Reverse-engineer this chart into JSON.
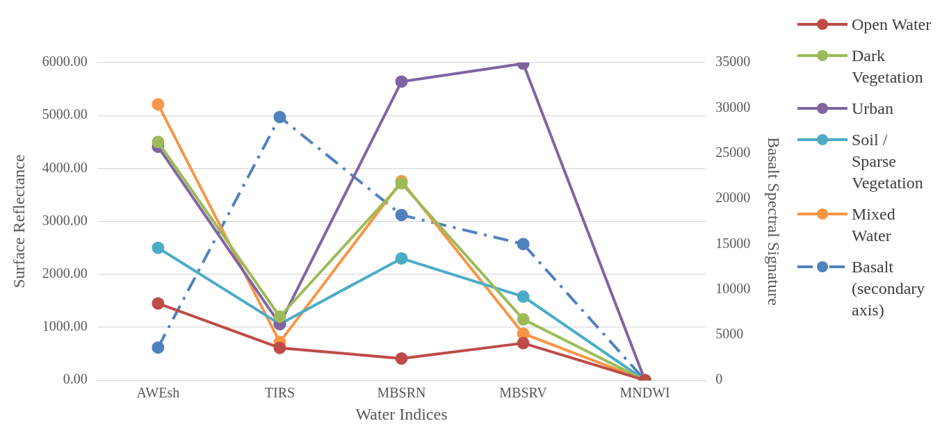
{
  "chart_data": {
    "type": "line",
    "xlabel": "Water Indices",
    "ylabel": "Surface Reflectance",
    "y2label": "Basalt Spectral Signature",
    "categories": [
      "AWEsh",
      "TIRS",
      "MBSRN",
      "MBSRV",
      "MNDWI"
    ],
    "series": [
      {
        "name": "Open Water",
        "color": "#be4b48",
        "values": [
          1450,
          610,
          410,
          700,
          0
        ]
      },
      {
        "name": "Dark Vegetation",
        "color": "#9bbb59",
        "values": [
          4500,
          1200,
          3720,
          1150,
          0
        ]
      },
      {
        "name": "Urban",
        "color": "#8064a2",
        "values": [
          4410,
          1060,
          5640,
          5980,
          0
        ]
      },
      {
        "name": "Soil / Sparse Vegetation",
        "color": "#4bacc6",
        "values": [
          2500,
          1060,
          2300,
          1580,
          0
        ]
      },
      {
        "name": "Mixed Water",
        "color": "#f79646",
        "values": [
          5210,
          720,
          3760,
          880,
          0
        ]
      },
      {
        "name": "Basalt (secondary axis)",
        "color": "#4f81bd",
        "axis": "y2",
        "line_style": "dashed",
        "values": [
          3600,
          29000,
          18200,
          15000,
          0
        ]
      }
    ],
    "ylim": [
      0,
      6000
    ],
    "yticks": [
      {
        "value": 0,
        "label": "0.00"
      },
      {
        "value": 1000,
        "label": "1000.00"
      },
      {
        "value": 2000,
        "label": "2000.00"
      },
      {
        "value": 3000,
        "label": "3000.00"
      },
      {
        "value": 4000,
        "label": "4000.00"
      },
      {
        "value": 5000,
        "label": "5000.00"
      },
      {
        "value": 6000,
        "label": "6000.00"
      }
    ],
    "y2lim": [
      0,
      35000
    ],
    "y2ticks": [
      0,
      5000,
      10000,
      15000,
      20000,
      25000,
      30000,
      35000
    ],
    "grid": "y",
    "legend": "right",
    "marker": "circle",
    "line_style": "solid"
  }
}
